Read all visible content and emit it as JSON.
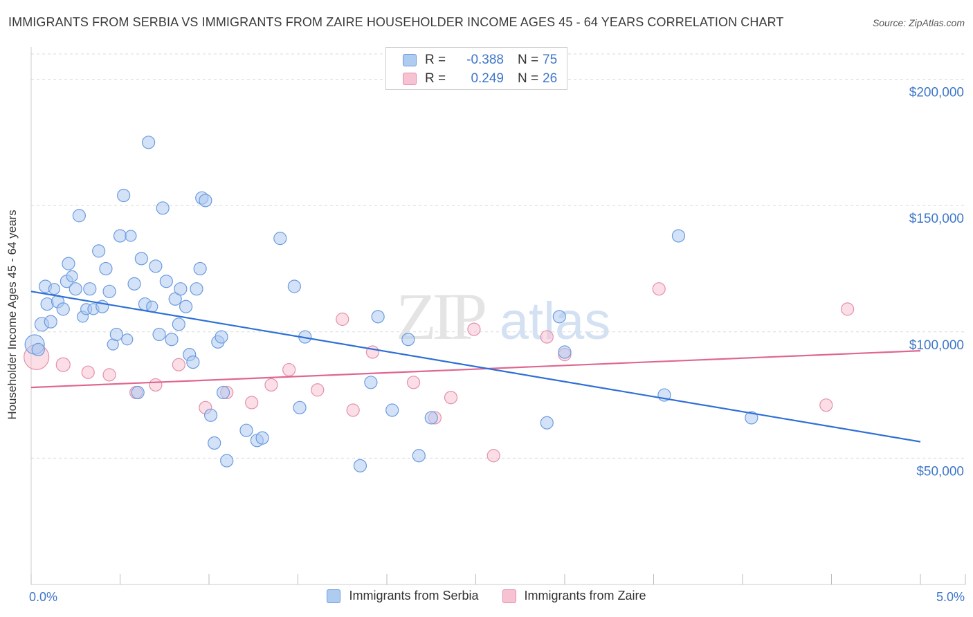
{
  "title": "IMMIGRANTS FROM SERBIA VS IMMIGRANTS FROM ZAIRE HOUSEHOLDER INCOME AGES 45 - 64 YEARS CORRELATION CHART",
  "source": "Source: ZipAtlas.com",
  "watermark": {
    "zip": "ZIP",
    "atlas": "atlas"
  },
  "colors": {
    "serbia_fill": "#aecbf0",
    "serbia_stroke": "#6b9be0",
    "serbia_line": "#2e6fd6",
    "zaire_fill": "#f7c2d2",
    "zaire_stroke": "#e48fab",
    "zaire_line": "#e0668f",
    "axis_value": "#3f77c9"
  },
  "legend": {
    "items": [
      {
        "r_label": "R =",
        "r_value": "-0.388",
        "n_label": "N =",
        "n_value": "75"
      },
      {
        "r_label": "R =",
        "r_value": "0.249",
        "n_label": "N =",
        "n_value": "26"
      }
    ]
  },
  "chart_data": {
    "type": "scatter",
    "title": "IMMIGRANTS FROM SERBIA VS IMMIGRANTS FROM ZAIRE HOUSEHOLDER INCOME AGES 45 - 64 YEARS CORRELATION CHART",
    "xlabel": "",
    "ylabel": "Householder Income Ages 45 - 64 years",
    "xlim": [
      0,
      5
    ],
    "ylim": [
      0,
      210000
    ],
    "x_tick_labels": [
      "0.0%",
      "5.0%"
    ],
    "y_ticks": [
      50000,
      100000,
      150000,
      200000
    ],
    "y_tick_labels": [
      "$50,000",
      "$100,000",
      "$150,000",
      "$200,000"
    ],
    "grid": "horizontal dashed",
    "legend_position": "top-center",
    "series": [
      {
        "name": "Immigrants from Serbia",
        "r": -0.388,
        "n": 75,
        "trend": {
          "x": [
            0,
            5
          ],
          "y": [
            116000,
            56500
          ]
        },
        "points": [
          [
            0.02,
            95000,
            14
          ],
          [
            0.04,
            93000,
            9
          ],
          [
            0.06,
            103000,
            10
          ],
          [
            0.08,
            118000,
            9
          ],
          [
            0.09,
            111000,
            9
          ],
          [
            0.11,
            104000,
            9
          ],
          [
            0.13,
            117000,
            8
          ],
          [
            0.15,
            112000,
            9
          ],
          [
            0.18,
            109000,
            9
          ],
          [
            0.2,
            120000,
            9
          ],
          [
            0.21,
            127000,
            9
          ],
          [
            0.23,
            122000,
            8
          ],
          [
            0.25,
            117000,
            9
          ],
          [
            0.27,
            146000,
            9
          ],
          [
            0.29,
            106000,
            8
          ],
          [
            0.31,
            109000,
            8
          ],
          [
            0.33,
            117000,
            9
          ],
          [
            0.35,
            109000,
            8
          ],
          [
            0.38,
            132000,
            9
          ],
          [
            0.4,
            110000,
            9
          ],
          [
            0.42,
            125000,
            9
          ],
          [
            0.44,
            116000,
            9
          ],
          [
            0.46,
            95000,
            8
          ],
          [
            0.48,
            99000,
            9
          ],
          [
            0.5,
            138000,
            9
          ],
          [
            0.52,
            154000,
            9
          ],
          [
            0.54,
            97000,
            8
          ],
          [
            0.56,
            138000,
            8
          ],
          [
            0.58,
            119000,
            9
          ],
          [
            0.6,
            76000,
            9
          ],
          [
            0.62,
            129000,
            9
          ],
          [
            0.64,
            111000,
            9
          ],
          [
            0.66,
            175000,
            9
          ],
          [
            0.68,
            110000,
            8
          ],
          [
            0.7,
            126000,
            9
          ],
          [
            0.72,
            99000,
            9
          ],
          [
            0.74,
            149000,
            9
          ],
          [
            0.76,
            120000,
            9
          ],
          [
            0.79,
            97000,
            9
          ],
          [
            0.81,
            113000,
            9
          ],
          [
            0.83,
            103000,
            9
          ],
          [
            0.84,
            117000,
            9
          ],
          [
            0.87,
            110000,
            9
          ],
          [
            0.89,
            91000,
            9
          ],
          [
            0.91,
            88000,
            9
          ],
          [
            0.93,
            117000,
            9
          ],
          [
            0.95,
            125000,
            9
          ],
          [
            0.96,
            153000,
            9
          ],
          [
            0.98,
            152000,
            9
          ],
          [
            1.01,
            67000,
            9
          ],
          [
            1.03,
            56000,
            9
          ],
          [
            1.05,
            96000,
            9
          ],
          [
            1.07,
            98000,
            9
          ],
          [
            1.08,
            76000,
            9
          ],
          [
            1.1,
            49000,
            9
          ],
          [
            1.21,
            61000,
            9
          ],
          [
            1.27,
            57000,
            9
          ],
          [
            1.3,
            58000,
            9
          ],
          [
            1.4,
            137000,
            9
          ],
          [
            1.48,
            118000,
            9
          ],
          [
            1.51,
            70000,
            9
          ],
          [
            1.54,
            98000,
            9
          ],
          [
            1.85,
            47000,
            9
          ],
          [
            1.91,
            80000,
            9
          ],
          [
            1.95,
            106000,
            9
          ],
          [
            2.03,
            69000,
            9
          ],
          [
            2.12,
            97000,
            9
          ],
          [
            2.18,
            51000,
            9
          ],
          [
            2.25,
            66000,
            9
          ],
          [
            2.9,
            64000,
            9
          ],
          [
            2.97,
            106000,
            9
          ],
          [
            3.0,
            92000,
            9
          ],
          [
            3.56,
            75000,
            9
          ],
          [
            3.64,
            138000,
            9
          ],
          [
            4.05,
            66000,
            9
          ]
        ]
      },
      {
        "name": "Immigrants from Zaire",
        "r": 0.249,
        "n": 26,
        "trend": {
          "x": [
            0,
            5
          ],
          "y": [
            78000,
            92500
          ]
        },
        "points": [
          [
            0.03,
            90000,
            18
          ],
          [
            0.18,
            87000,
            10
          ],
          [
            0.32,
            84000,
            9
          ],
          [
            0.44,
            83000,
            9
          ],
          [
            0.59,
            76000,
            9
          ],
          [
            0.7,
            79000,
            9
          ],
          [
            0.83,
            87000,
            9
          ],
          [
            0.98,
            70000,
            9
          ],
          [
            1.1,
            76000,
            9
          ],
          [
            1.24,
            72000,
            9
          ],
          [
            1.35,
            79000,
            9
          ],
          [
            1.45,
            85000,
            9
          ],
          [
            1.61,
            77000,
            9
          ],
          [
            1.75,
            105000,
            9
          ],
          [
            1.81,
            69000,
            9
          ],
          [
            1.92,
            92000,
            9
          ],
          [
            2.15,
            80000,
            9
          ],
          [
            2.27,
            66000,
            9
          ],
          [
            2.36,
            74000,
            9
          ],
          [
            2.49,
            101000,
            9
          ],
          [
            2.6,
            51000,
            9
          ],
          [
            2.9,
            98000,
            9
          ],
          [
            3.0,
            91000,
            9
          ],
          [
            3.53,
            117000,
            9
          ],
          [
            4.47,
            71000,
            9
          ],
          [
            4.59,
            109000,
            9
          ]
        ]
      }
    ]
  }
}
